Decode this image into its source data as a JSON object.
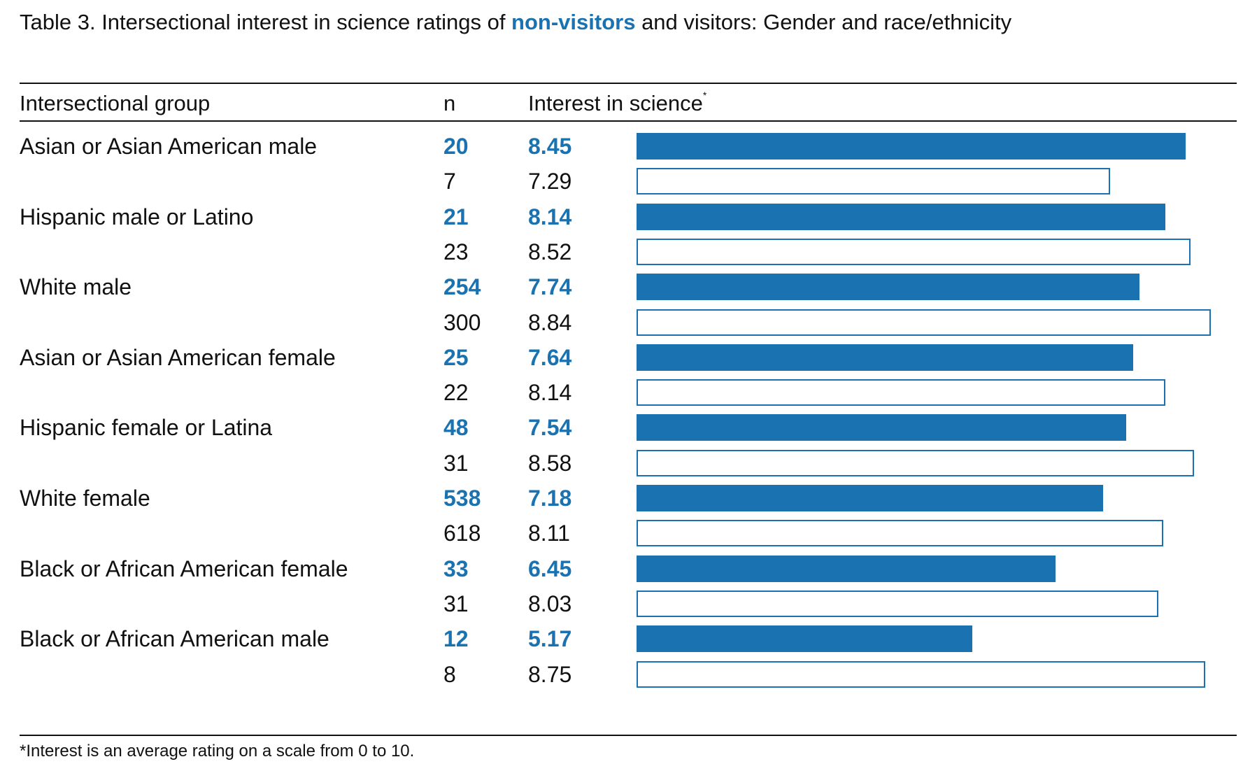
{
  "title": {
    "prefix": "Table 3. Intersectional interest in science ratings of ",
    "highlight": "non-visitors",
    "suffix": " and visitors: Gender and race/ethnicity"
  },
  "headers": {
    "group": "Intersectional group",
    "n": "n",
    "interest": "Interest in science",
    "interest_mark": "*"
  },
  "footnote": "*Interest is an average rating on a scale from 0 to 10.",
  "colors": {
    "accent": "#1a73b0",
    "text": "#111111"
  },
  "chart_data": {
    "type": "bar",
    "orientation": "horizontal",
    "xlim": [
      0,
      10
    ],
    "series_styles": {
      "non-visitors": "filled accent bar, bold accent text",
      "visitors": "outlined bar, plain text"
    },
    "categories": [
      "Asian or Asian American male",
      "Hispanic male or Latino",
      "White male",
      "Asian or Asian American female",
      "Hispanic female or Latina",
      "White female",
      "Black or African American female",
      "Black or African American male"
    ],
    "series": [
      {
        "name": "non-visitors",
        "n": [
          "20",
          "21",
          "254",
          "25",
          "48",
          "538",
          "33",
          "12"
        ],
        "values": [
          8.45,
          8.14,
          7.74,
          7.64,
          7.54,
          7.18,
          6.45,
          5.17
        ],
        "labels": [
          "8.45",
          "8.14",
          "7.74",
          "7.64",
          "7.54",
          "7.18",
          "6.45",
          "5.17"
        ]
      },
      {
        "name": "visitors",
        "n": [
          "7",
          "23",
          "300",
          "22",
          "31",
          "618",
          "31",
          "8"
        ],
        "values": [
          7.29,
          8.52,
          8.84,
          8.14,
          8.58,
          8.11,
          8.03,
          8.75
        ],
        "labels": [
          "7.29",
          "8.52",
          "8.84",
          "8.14",
          "8.58",
          "8.11",
          "8.03",
          "8.75"
        ]
      }
    ]
  }
}
